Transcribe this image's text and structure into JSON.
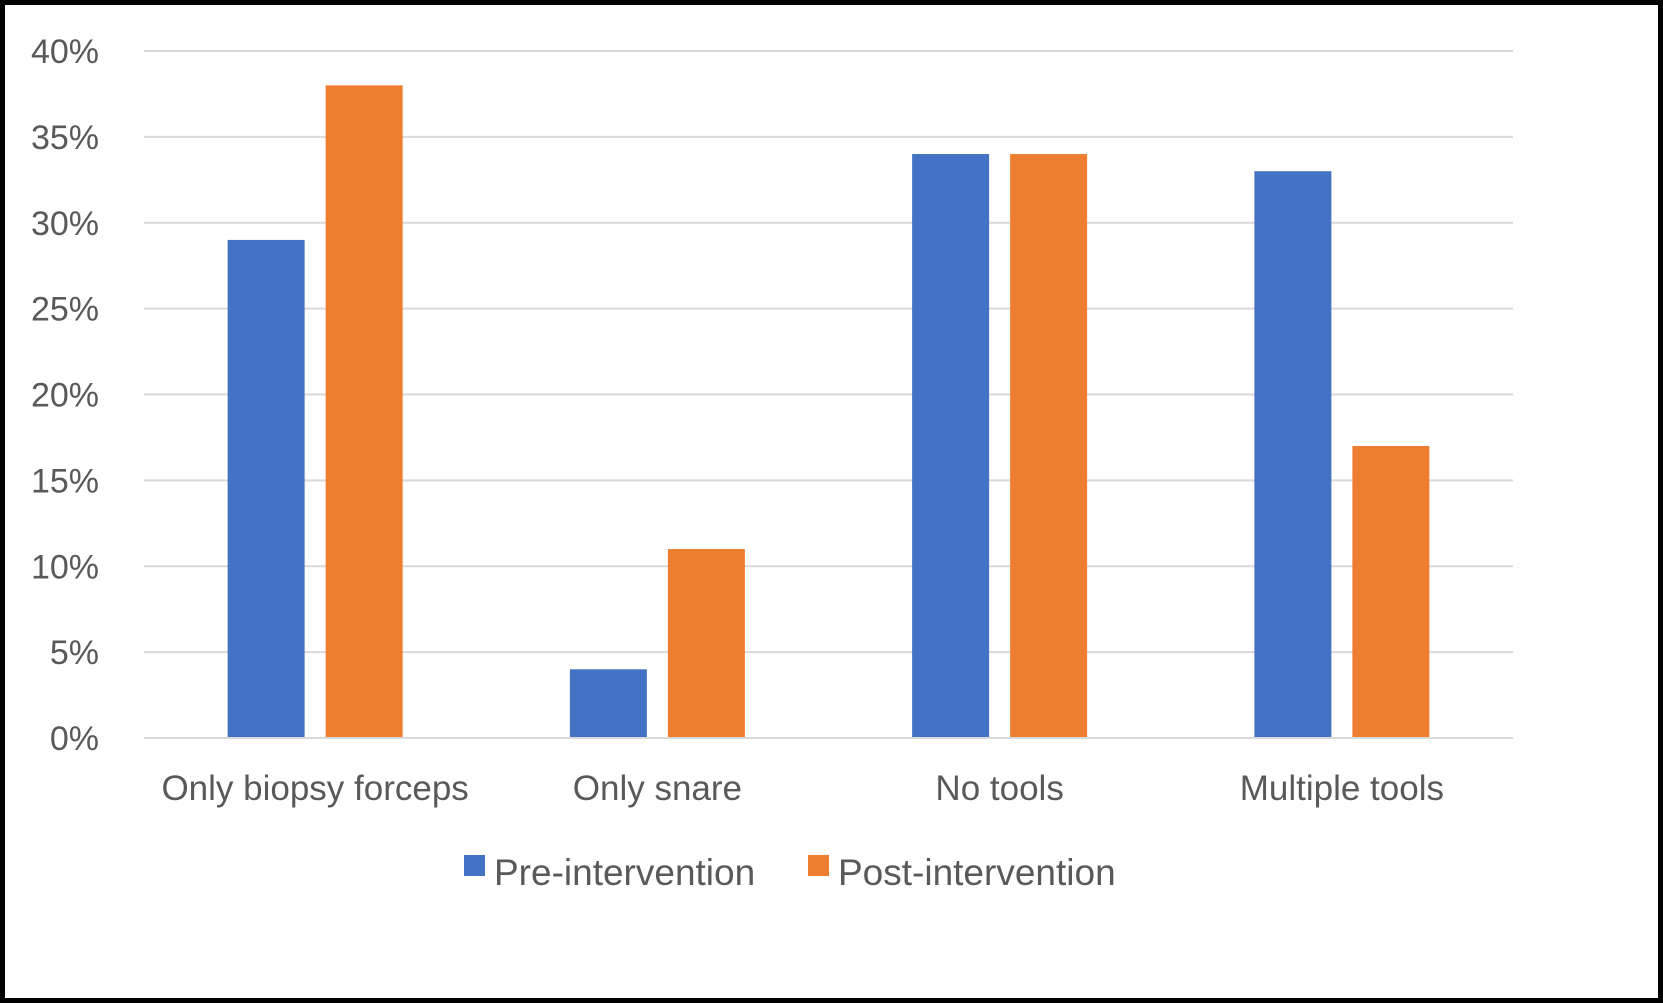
{
  "chart_data": {
    "type": "bar",
    "categories": [
      "Only biopsy forceps",
      "Only snare",
      "No tools",
      "Multiple tools"
    ],
    "series": [
      {
        "name": "Pre-intervention",
        "color": "#4472c4",
        "values": [
          29,
          4,
          34,
          33
        ]
      },
      {
        "name": "Post-intervention",
        "color": "#ed7d31",
        "values": [
          38,
          11,
          34,
          17
        ]
      }
    ],
    "title": "",
    "xlabel": "",
    "ylabel": "",
    "ylim": [
      0,
      40
    ],
    "yticks": [
      0,
      5,
      10,
      15,
      20,
      25,
      30,
      35,
      40
    ],
    "y_tick_format": "percent",
    "grid": true,
    "legend_position": "bottom"
  }
}
